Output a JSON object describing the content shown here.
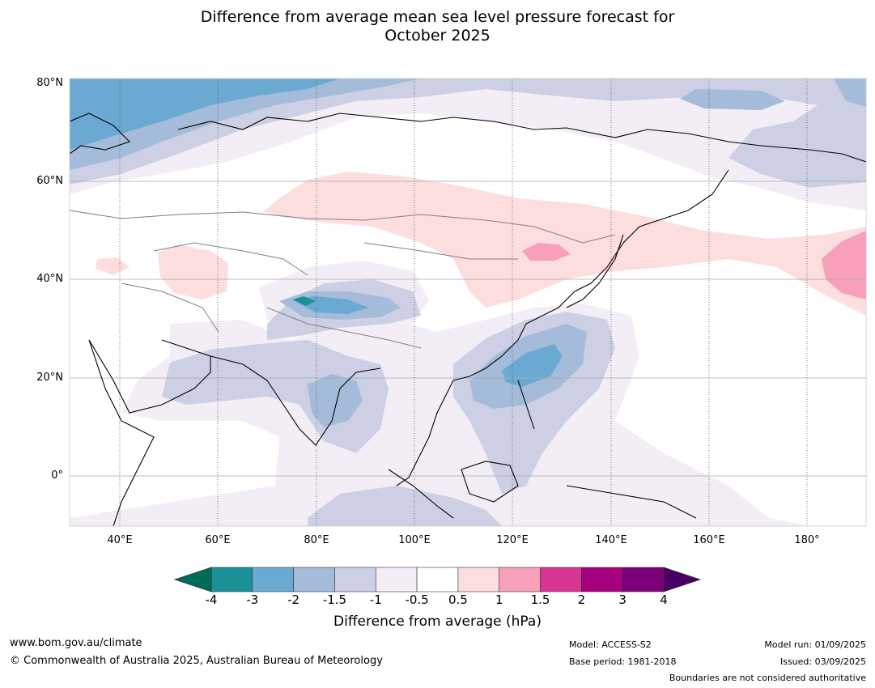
{
  "title_line1": "Difference from average mean sea level pressure forecast for",
  "title_line2": "October 2025",
  "lat_labels": [
    "80°N",
    "60°N",
    "40°N",
    "20°N",
    "0°"
  ],
  "lon_labels": [
    "40°E",
    "60°E",
    "80°E",
    "100°E",
    "120°E",
    "140°E",
    "160°E",
    "180°"
  ],
  "colorbar": {
    "ticks": [
      "-4",
      "-3",
      "-2",
      "-1.5",
      "-1",
      "-0.5",
      "0.5",
      "1",
      "1.5",
      "2",
      "3",
      "4"
    ],
    "colors": [
      "#1a9196",
      "#6aaad2",
      "#a4bcd9",
      "#cdcfe5",
      "#f3eef6",
      "#ffffff",
      "#fddede",
      "#f89fb9",
      "#d93595",
      "#a7007f",
      "#7b0079"
    ],
    "under_color": "#006a5b",
    "over_color": "#490062",
    "title": "Difference from average (hPa)"
  },
  "footer": {
    "url": "www.bom.gov.au/climate",
    "copyright": "© Commonwealth of Australia 2025, Australian Bureau of Meteorology",
    "model": "Model: ACCESS-S2",
    "base_period": "Base period: 1981-2018",
    "model_run": "Model run: 01/09/2025",
    "issued": "Issued: 03/09/2025",
    "disclaimer": "Boundaries are not considered authoritative"
  }
}
